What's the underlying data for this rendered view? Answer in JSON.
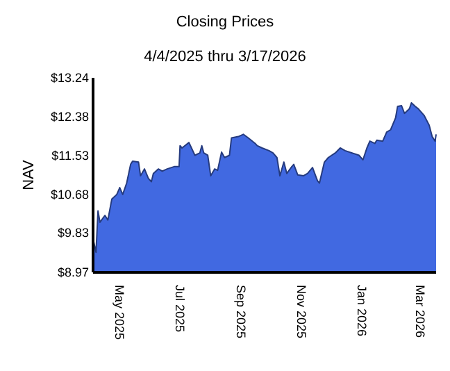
{
  "chart_data": {
    "type": "area",
    "title": "Closing Prices",
    "subtitle": "4/4/2025 thru 3/17/2026",
    "ylabel": "NAV",
    "x": [
      "2025-04-04",
      "2025-04-07",
      "2025-04-09",
      "2025-04-11",
      "2025-04-16",
      "2025-04-19",
      "2025-04-23",
      "2025-04-28",
      "2025-05-01",
      "2025-05-04",
      "2025-05-08",
      "2025-05-12",
      "2025-05-14",
      "2025-05-20",
      "2025-05-22",
      "2025-05-26",
      "2025-05-30",
      "2025-06-02",
      "2025-06-04",
      "2025-06-09",
      "2025-06-13",
      "2025-06-18",
      "2025-06-25",
      "2025-06-30",
      "2025-07-01",
      "2025-07-03",
      "2025-07-10",
      "2025-07-16",
      "2025-07-21",
      "2025-07-23",
      "2025-07-25",
      "2025-07-29",
      "2025-08-01",
      "2025-08-05",
      "2025-08-08",
      "2025-08-12",
      "2025-08-15",
      "2025-08-20",
      "2025-08-22",
      "2025-08-29",
      "2025-09-03",
      "2025-09-08",
      "2025-09-15",
      "2025-09-17",
      "2025-09-22",
      "2025-09-29",
      "2025-10-03",
      "2025-10-07",
      "2025-10-10",
      "2025-10-14",
      "2025-10-17",
      "2025-10-22",
      "2025-10-24",
      "2025-10-28",
      "2025-11-03",
      "2025-11-07",
      "2025-11-12",
      "2025-11-17",
      "2025-11-19",
      "2025-11-24",
      "2025-11-28",
      "2025-12-05",
      "2025-12-10",
      "2025-12-15",
      "2025-12-22",
      "2025-12-29",
      "2026-01-02",
      "2026-01-06",
      "2026-01-09",
      "2026-01-14",
      "2026-01-16",
      "2026-01-22",
      "2026-01-26",
      "2026-01-30",
      "2026-02-04",
      "2026-02-06",
      "2026-02-10",
      "2026-02-13",
      "2026-02-18",
      "2026-02-20",
      "2026-02-24",
      "2026-02-27",
      "2026-03-05",
      "2026-03-10",
      "2026-03-13",
      "2026-03-16",
      "2026-03-17"
    ],
    "series": [
      {
        "color": "#4169e1",
        "values": [
          9.71,
          9.41,
          10.32,
          10.07,
          10.22,
          10.12,
          10.58,
          10.68,
          10.83,
          10.68,
          10.93,
          11.34,
          11.41,
          11.39,
          11.09,
          11.24,
          11.03,
          10.96,
          11.14,
          11.24,
          11.19,
          11.24,
          11.29,
          11.29,
          11.75,
          11.7,
          11.82,
          11.54,
          11.59,
          11.75,
          11.59,
          11.54,
          11.09,
          11.24,
          11.21,
          11.61,
          11.49,
          11.54,
          11.92,
          11.95,
          12.0,
          11.92,
          11.8,
          11.75,
          11.7,
          11.64,
          11.59,
          11.49,
          11.09,
          11.39,
          11.14,
          11.29,
          11.34,
          11.11,
          11.09,
          11.14,
          11.27,
          10.98,
          10.93,
          11.39,
          11.49,
          11.59,
          11.7,
          11.64,
          11.59,
          11.54,
          11.44,
          11.7,
          11.85,
          11.8,
          11.87,
          11.85,
          12.05,
          12.1,
          12.36,
          12.61,
          12.63,
          12.46,
          12.56,
          12.69,
          12.61,
          12.56,
          12.41,
          12.2,
          11.95,
          11.85,
          12.0
        ]
      }
    ],
    "xlim": [
      "2025-04-04",
      "2026-03-17"
    ],
    "xticks": [
      {
        "value": "2025-05-01",
        "label": "May 2025"
      },
      {
        "value": "2025-07-01",
        "label": "Jul 2025"
      },
      {
        "value": "2025-09-01",
        "label": "Sep 2025"
      },
      {
        "value": "2025-11-01",
        "label": "Nov 2025"
      },
      {
        "value": "2026-01-01",
        "label": "Jan 2026"
      },
      {
        "value": "2026-03-01",
        "label": "Mar 2026"
      }
    ],
    "ylim": [
      8.97,
      13.24
    ],
    "yticks": [
      {
        "value": 8.97,
        "label": "$8.97"
      },
      {
        "value": 9.83,
        "label": "$9.83"
      },
      {
        "value": 10.68,
        "label": "$10.68"
      },
      {
        "value": 11.53,
        "label": "$11.53"
      },
      {
        "value": 12.38,
        "label": "$12.38"
      },
      {
        "value": 13.24,
        "label": "$13.24"
      }
    ],
    "grid": false
  }
}
